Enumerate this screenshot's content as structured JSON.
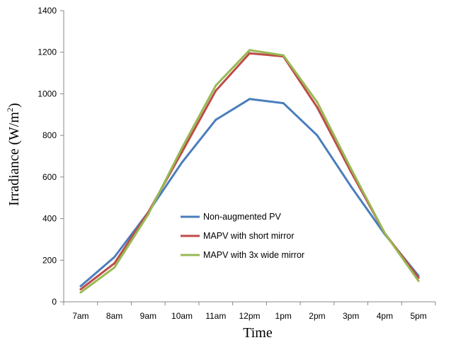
{
  "chart_data": {
    "type": "line",
    "xlabel": "Time",
    "ylabel": "Irradiance (W/m",
    "ylabel_sup": "2",
    "ylabel_tail": ")",
    "ylim": [
      0,
      1400
    ],
    "yticks": [
      "0",
      "200",
      "400",
      "600",
      "800",
      "1000",
      "1200",
      "1400"
    ],
    "categories": [
      "7am",
      "8am",
      "9am",
      "10am",
      "11am",
      "12pm",
      "1pm",
      "2pm",
      "3pm",
      "4pm",
      "5pm"
    ],
    "grid": false,
    "legend_position": "center-inside",
    "series": [
      {
        "name": "Non-augmented PV",
        "color": "#4a7ebb",
        "values": [
          75,
          215,
          430,
          670,
          875,
          975,
          955,
          800,
          555,
          325,
          125
        ]
      },
      {
        "name": "MAPV with short mirror",
        "color": "#be4b48",
        "values": [
          60,
          185,
          430,
          720,
          1015,
          1195,
          1180,
          935,
          625,
          330,
          115
        ]
      },
      {
        "name": "MAPV with 3x wide mirror",
        "color": "#98b954",
        "values": [
          45,
          165,
          420,
          740,
          1040,
          1210,
          1185,
          960,
          640,
          330,
          100
        ]
      }
    ]
  }
}
